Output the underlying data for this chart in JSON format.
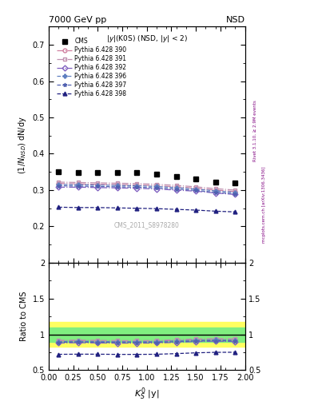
{
  "title_left": "7000 GeV pp",
  "title_right": "NSD",
  "ylabel_main": "$(1/N_{NSD})$ dN/dy",
  "ylabel_ratio": "Ratio to CMS",
  "xlabel": "$K^0_S$ |y|",
  "annotation": "|y|(K0S) (NSD, |y| < 2)",
  "watermark": "CMS_2011_S8978280",
  "rivet_text": "Rivet 3.1.10, ≥ 2.9M events",
  "mcplots_text": "mcplots.cern.ch [arXiv:1306.3436]",
  "ylim_main": [
    0.1,
    0.75
  ],
  "ylim_ratio": [
    0.5,
    2.0
  ],
  "xlim": [
    0.0,
    2.0
  ],
  "x_data": [
    0.1,
    0.3,
    0.5,
    0.7,
    0.9,
    1.1,
    1.3,
    1.5,
    1.7,
    1.9
  ],
  "cms_y": [
    0.351,
    0.349,
    0.349,
    0.349,
    0.348,
    0.345,
    0.338,
    0.33,
    0.323,
    0.32
  ],
  "py390_y": [
    0.318,
    0.317,
    0.316,
    0.315,
    0.314,
    0.312,
    0.309,
    0.305,
    0.3,
    0.296
  ],
  "py391_y": [
    0.322,
    0.321,
    0.32,
    0.319,
    0.318,
    0.316,
    0.313,
    0.309,
    0.304,
    0.3
  ],
  "py392_y": [
    0.308,
    0.308,
    0.307,
    0.306,
    0.305,
    0.303,
    0.3,
    0.297,
    0.292,
    0.288
  ],
  "py396_y": [
    0.316,
    0.315,
    0.314,
    0.313,
    0.312,
    0.31,
    0.307,
    0.303,
    0.298,
    0.294
  ],
  "py397_y": [
    0.312,
    0.311,
    0.31,
    0.309,
    0.308,
    0.306,
    0.303,
    0.299,
    0.294,
    0.29
  ],
  "py398_y": [
    0.253,
    0.252,
    0.252,
    0.251,
    0.25,
    0.249,
    0.247,
    0.245,
    0.242,
    0.24
  ],
  "py390_ratio": [
    0.906,
    0.909,
    0.906,
    0.903,
    0.903,
    0.904,
    0.915,
    0.924,
    0.929,
    0.925
  ],
  "py391_ratio": [
    0.918,
    0.921,
    0.917,
    0.914,
    0.914,
    0.916,
    0.926,
    0.936,
    0.941,
    0.938
  ],
  "py392_ratio": [
    0.878,
    0.883,
    0.88,
    0.877,
    0.877,
    0.878,
    0.888,
    0.9,
    0.904,
    0.9
  ],
  "py396_ratio": [
    0.9,
    0.903,
    0.9,
    0.898,
    0.898,
    0.899,
    0.909,
    0.918,
    0.923,
    0.919
  ],
  "py397_ratio": [
    0.889,
    0.892,
    0.889,
    0.886,
    0.886,
    0.887,
    0.897,
    0.906,
    0.911,
    0.907
  ],
  "py398_ratio": [
    0.721,
    0.723,
    0.723,
    0.72,
    0.72,
    0.722,
    0.731,
    0.742,
    0.749,
    0.75
  ],
  "colors": {
    "390": "#d080a0",
    "391": "#c090b0",
    "392": "#8060c0",
    "396": "#6080c0",
    "397": "#5060b0",
    "398": "#202080"
  },
  "linestyles": {
    "390": "-.",
    "391": "-.",
    "392": "-.",
    "396": "--",
    "397": "--",
    "398": "--"
  },
  "markers": {
    "390": "o",
    "391": "s",
    "392": "D",
    "396": "P",
    "397": "*",
    "398": "^"
  },
  "band_yellow": "#ffff60",
  "band_green": "#80ee80"
}
